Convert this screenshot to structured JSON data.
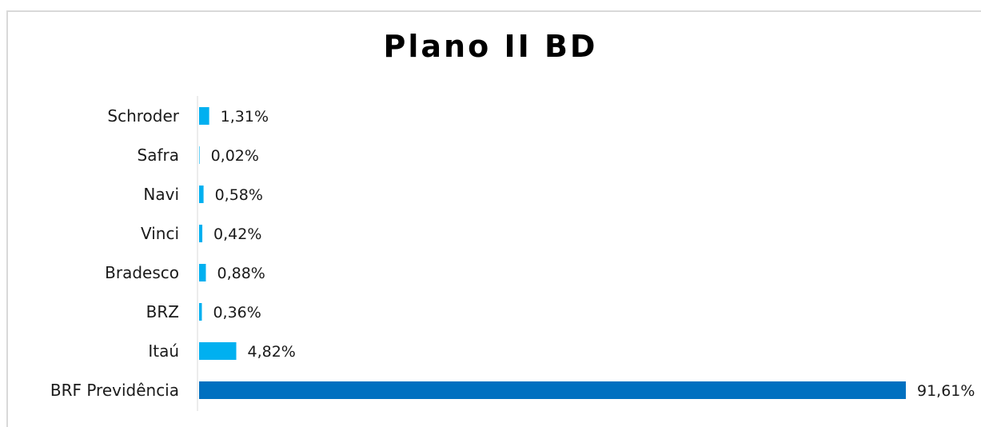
{
  "chart_data": {
    "type": "bar",
    "orientation": "horizontal",
    "title": "Plano II BD",
    "categories": [
      "Schroder",
      "Safra",
      "Navi",
      "Vinci",
      "Bradesco",
      "BRZ",
      "Itaú",
      "BRF Previdência"
    ],
    "values": [
      1.31,
      0.02,
      0.58,
      0.42,
      0.88,
      0.36,
      4.82,
      91.61
    ],
    "value_labels": [
      "1,31%",
      "0,02%",
      "0,58%",
      "0,42%",
      "0,88%",
      "0,36%",
      "4,82%",
      "91,61%"
    ],
    "xlim": [
      0,
      100
    ],
    "grid": false,
    "legend": "none",
    "colors": {
      "default_bar": "#00b0f0",
      "highlight_bar": "#0070c0",
      "axis": "#d9d9d9"
    }
  }
}
